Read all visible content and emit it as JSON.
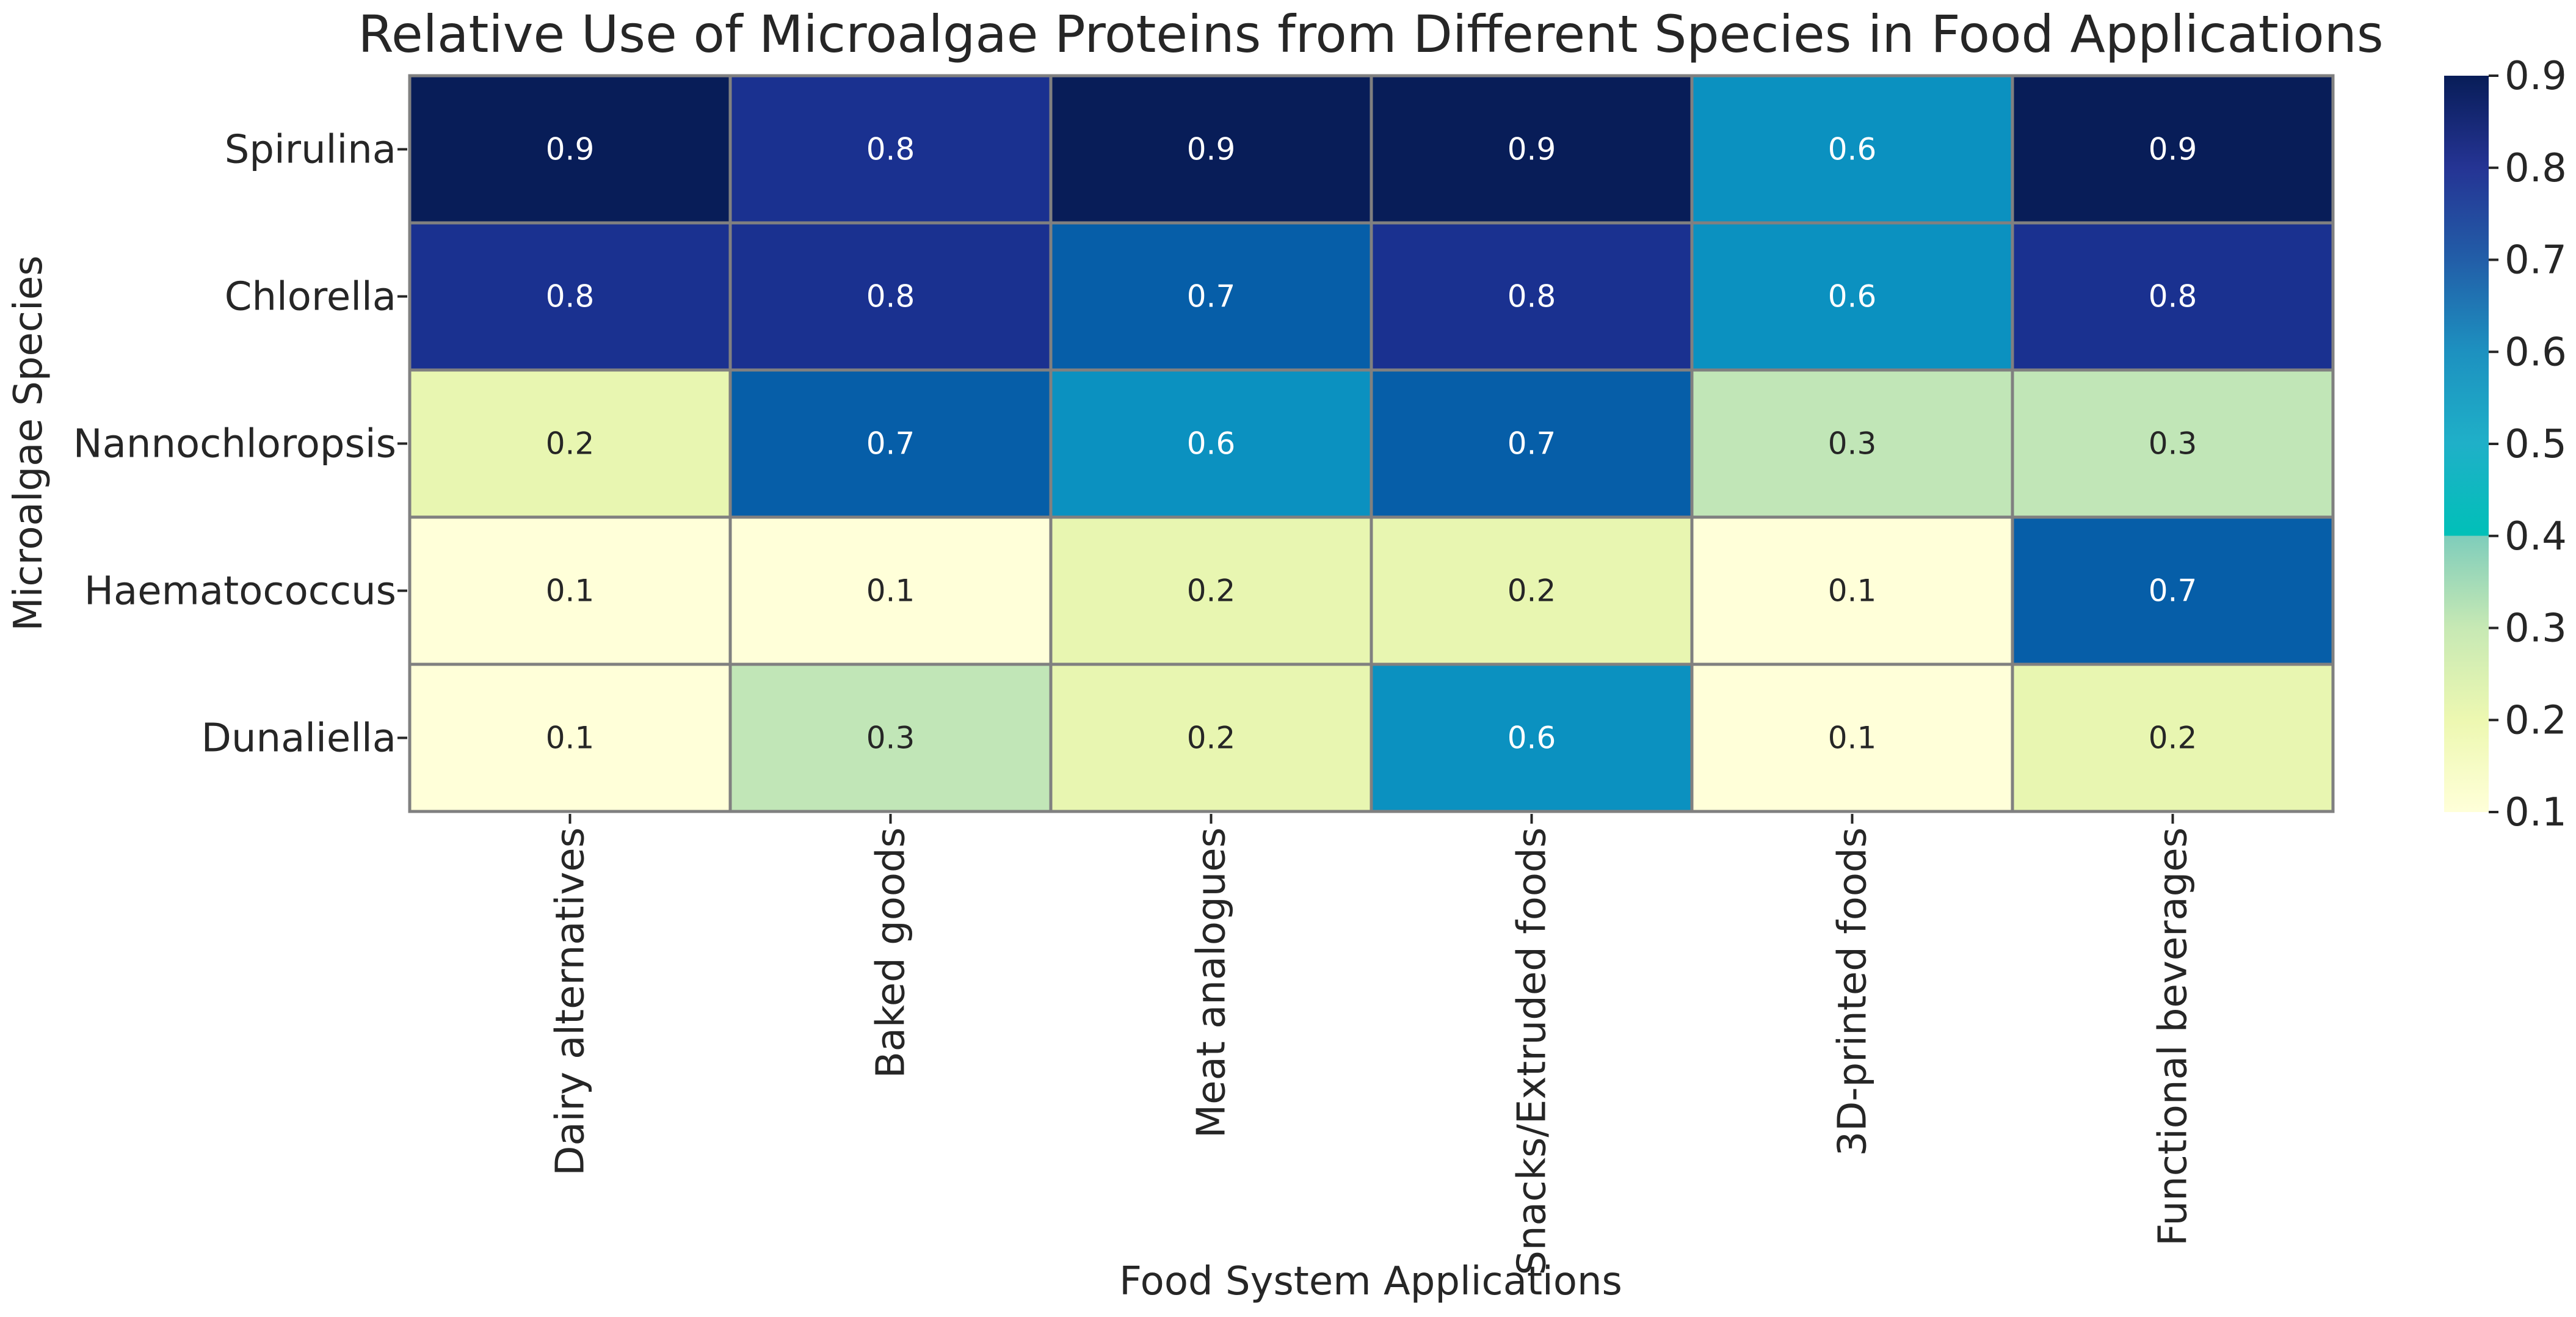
{
  "chart_data": {
    "type": "heatmap",
    "title": "Relative Use of Microalgae Proteins from Different Species in Food Applications",
    "xlabel": "Food System Applications",
    "ylabel": "Microalgae Species",
    "x_categories": [
      "Dairy alternatives",
      "Baked goods",
      "Meat analogues",
      "Snacks/Extruded foods",
      "3D-printed foods",
      "Functional beverages"
    ],
    "y_categories": [
      "Spirulina",
      "Chlorella",
      "Nannochloropsis",
      "Haematococcus",
      "Dunaliella"
    ],
    "values": [
      [
        0.9,
        0.8,
        0.9,
        0.9,
        0.6,
        0.9
      ],
      [
        0.8,
        0.8,
        0.7,
        0.8,
        0.6,
        0.8
      ],
      [
        0.2,
        0.7,
        0.6,
        0.7,
        0.3,
        0.3
      ],
      [
        0.1,
        0.1,
        0.2,
        0.2,
        0.1,
        0.7
      ],
      [
        0.1,
        0.3,
        0.2,
        0.6,
        0.1,
        0.2
      ]
    ],
    "colormap": "YlGnBu",
    "colorbar": {
      "range": [
        0.1,
        0.9
      ],
      "ticks": [
        "0.1",
        "0.2",
        "0.3",
        "0.4",
        "0.5",
        "0.6",
        "0.7",
        "0.8",
        "0.9"
      ]
    }
  },
  "colors": {
    "0.1": "#ffffd9",
    "0.2": "#e8f6b1",
    "0.3": "#c1e6b7",
    "0.4": "#7fcdbb",
    "0.5": "#40b6c4",
    "0.6": "#0b91c0",
    "0.7": "#065ea8",
    "0.8": "#1a3190",
    "0.9": "#081d58",
    "grid": "#808080",
    "text_dark": "#262626",
    "text_light": "#ffffff"
  }
}
